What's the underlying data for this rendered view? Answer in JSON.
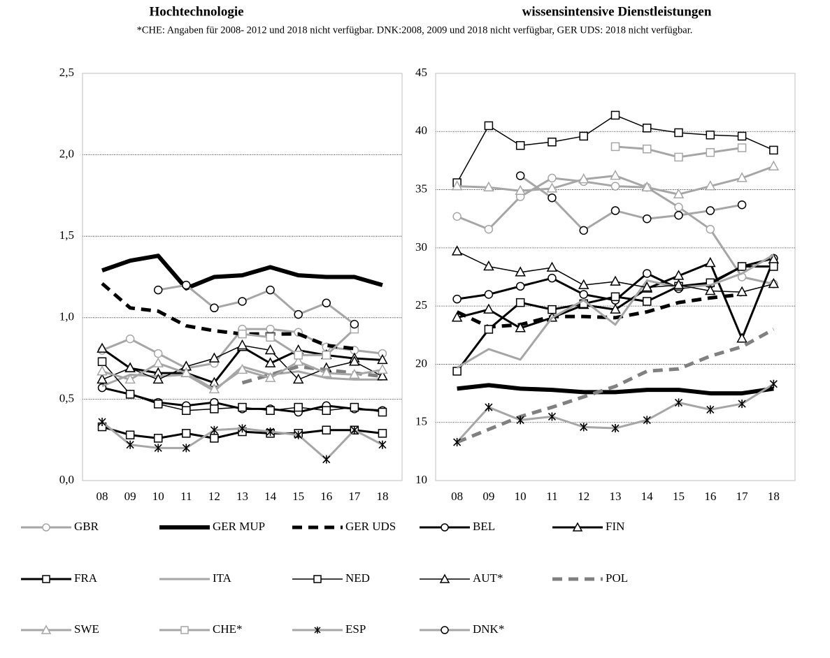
{
  "chart_data": [
    {
      "type": "line",
      "title": "Hochtechnologie",
      "subtitle": "*CHE: Angaben für 2008- 2012 und 2018 nicht verfügbar. DNK:2008, 2009 und 2018 nicht verfügbar, GER UDS: 2018 nicht verfügbar.",
      "categories": [
        "08",
        "09",
        "10",
        "11",
        "12",
        "13",
        "14",
        "15",
        "16",
        "17",
        "18"
      ],
      "ylim": [
        0,
        2.5
      ],
      "yticks": [
        {
          "value": 0,
          "label": "0,0"
        },
        {
          "value": 0.5,
          "label": "0,5"
        },
        {
          "value": 1,
          "label": "1,0"
        },
        {
          "value": 1.5,
          "label": "1,5"
        },
        {
          "value": 2,
          "label": "2,0"
        },
        {
          "value": 2.5,
          "label": "2,5"
        }
      ],
      "grid": true,
      "series": [
        {
          "name": "GBR",
          "color": "#a6a6a6",
          "marker": "circle",
          "marker_color": "#a6a6a6",
          "dash": "solid",
          "values": [
            0.8,
            0.87,
            0.78,
            0.69,
            0.72,
            0.93,
            0.93,
            0.91,
            0.82,
            0.8,
            0.78
          ]
        },
        {
          "name": "GER MUP",
          "color": "#000000",
          "marker": "none",
          "dash": "solid",
          "values": [
            1.29,
            1.35,
            1.38,
            1.18,
            1.25,
            1.26,
            1.31,
            1.26,
            1.25,
            1.25,
            1.2
          ]
        },
        {
          "name": "GER UDS",
          "color": "#000000",
          "marker": "none",
          "dash": "dashed",
          "values": [
            1.21,
            1.06,
            1.04,
            0.95,
            0.92,
            0.9,
            0.9,
            0.9,
            0.83,
            0.81,
            null
          ]
        },
        {
          "name": "BEL",
          "color": "#000000",
          "marker": "circle",
          "marker_color": "#000000",
          "dash": "solid",
          "values": [
            0.57,
            0.53,
            0.48,
            0.46,
            0.48,
            0.44,
            0.44,
            0.42,
            0.46,
            0.44,
            0.43
          ]
        },
        {
          "name": "FIN",
          "color": "#000000",
          "marker": "triangle",
          "marker_color": "#000000",
          "dash": "solid",
          "values": [
            0.81,
            0.69,
            0.66,
            0.66,
            0.6,
            0.82,
            0.72,
            0.8,
            0.77,
            0.75,
            0.74
          ]
        },
        {
          "name": "FRA",
          "color": "#000000",
          "marker": "square",
          "marker_color": "#000000",
          "dash": "solid",
          "values": [
            0.33,
            0.28,
            0.26,
            0.29,
            0.26,
            0.3,
            0.29,
            0.29,
            0.31,
            0.31,
            0.29
          ]
        },
        {
          "name": "ITA",
          "color": "#a6a6a6",
          "marker": "none",
          "dash": "solid",
          "values": [
            0.58,
            0.65,
            0.64,
            0.65,
            0.55,
            0.7,
            0.65,
            0.67,
            0.63,
            0.62,
            0.62
          ]
        },
        {
          "name": "NED",
          "color": "#000000",
          "marker": "square",
          "marker_color": "#000000",
          "dash": "thin",
          "values": [
            0.73,
            0.53,
            0.47,
            0.43,
            0.44,
            0.45,
            0.43,
            0.45,
            0.43,
            0.45,
            0.42
          ]
        },
        {
          "name": "AUT*",
          "color": "#000000",
          "marker": "triangle",
          "marker_color": "#000000",
          "dash": "thin",
          "values": [
            0.62,
            0.69,
            0.62,
            0.7,
            0.75,
            0.83,
            0.8,
            0.62,
            0.69,
            0.73,
            0.64
          ]
        },
        {
          "name": "POL",
          "color": "#808080",
          "marker": "none",
          "dash": "dashed",
          "values": [
            null,
            null,
            null,
            null,
            null,
            0.6,
            0.65,
            0.7,
            0.68,
            0.66,
            0.64
          ]
        },
        {
          "name": "SWE",
          "color": "#a6a6a6",
          "marker": "triangle",
          "marker_color": "#a6a6a6",
          "dash": "solid",
          "values": [
            0.67,
            0.62,
            0.72,
            0.66,
            0.56,
            0.68,
            0.63,
            0.73,
            0.66,
            0.65,
            0.68
          ]
        },
        {
          "name": "CHE*",
          "color": "#a6a6a6",
          "marker": "square",
          "marker_color": "#a6a6a6",
          "dash": "solid",
          "values": [
            null,
            null,
            null,
            null,
            null,
            0.9,
            0.88,
            0.77,
            0.77,
            0.93,
            null
          ]
        },
        {
          "name": "ESP",
          "color": "#a6a6a6",
          "marker": "star",
          "marker_color": "#000000",
          "dash": "solid",
          "values": [
            0.36,
            0.22,
            0.2,
            0.2,
            0.31,
            0.32,
            0.3,
            0.28,
            0.13,
            0.31,
            0.22
          ]
        },
        {
          "name": "DNK*",
          "color": "#a6a6a6",
          "marker": "circle",
          "marker_color": "#000000",
          "dash": "solid",
          "values": [
            null,
            null,
            1.17,
            1.2,
            1.06,
            1.1,
            1.17,
            1.02,
            1.09,
            0.96,
            null
          ]
        }
      ]
    },
    {
      "type": "line",
      "title": "wissensintensive Dienstleistungen",
      "categories": [
        "08",
        "09",
        "10",
        "11",
        "12",
        "13",
        "14",
        "15",
        "16",
        "17",
        "18"
      ],
      "ylim": [
        10,
        45
      ],
      "yticks": [
        10,
        15,
        20,
        25,
        30,
        35,
        40,
        45
      ],
      "grid": true,
      "series": [
        {
          "name": "GBR",
          "color": "#a6a6a6",
          "marker": "circle",
          "marker_color": "#a6a6a6",
          "dash": "solid",
          "values": [
            32.7,
            31.6,
            34.4,
            36.0,
            35.7,
            35.3,
            35.2,
            33.5,
            31.6,
            27.5,
            26.9
          ]
        },
        {
          "name": "GER MUP",
          "color": "#000000",
          "marker": "none",
          "dash": "solid",
          "values": [
            17.9,
            18.2,
            17.9,
            17.8,
            17.6,
            17.6,
            17.8,
            17.8,
            17.5,
            17.5,
            17.9
          ]
        },
        {
          "name": "GER UDS",
          "color": "#000000",
          "marker": "none",
          "dash": "dashed",
          "values": [
            24.5,
            23.2,
            23.4,
            24.1,
            24.1,
            24.0,
            24.5,
            25.3,
            25.7,
            26.0,
            null
          ]
        },
        {
          "name": "BEL",
          "color": "#000000",
          "marker": "circle",
          "marker_color": "#000000",
          "dash": "solid",
          "values": [
            25.6,
            26.0,
            26.7,
            27.4,
            26.0,
            25.5,
            27.8,
            26.5,
            26.9,
            28.4,
            29.1
          ]
        },
        {
          "name": "FIN",
          "color": "#000000",
          "marker": "triangle",
          "marker_color": "#000000",
          "dash": "solid",
          "values": [
            24.0,
            24.7,
            23.1,
            24.0,
            25.1,
            24.7,
            26.5,
            27.6,
            28.7,
            22.2,
            29.0
          ]
        },
        {
          "name": "FRA",
          "color": "#000000",
          "marker": "square",
          "marker_color": "#000000",
          "dash": "solid",
          "values": [
            19.4,
            23.0,
            25.3,
            24.7,
            25.2,
            25.8,
            25.4,
            26.7,
            27.0,
            28.4,
            28.4
          ]
        },
        {
          "name": "ITA",
          "color": "#a6a6a6",
          "marker": "none",
          "dash": "solid",
          "values": [
            19.7,
            21.3,
            20.4,
            24.0,
            25.5,
            23.4,
            27.2,
            26.6,
            26.8,
            27.8,
            29.4
          ]
        },
        {
          "name": "NED",
          "color": "#000000",
          "marker": "square",
          "marker_color": "#000000",
          "dash": "thin",
          "values": [
            35.6,
            40.5,
            38.8,
            39.1,
            39.6,
            41.4,
            40.3,
            39.9,
            39.7,
            39.6,
            38.4
          ]
        },
        {
          "name": "AUT*",
          "color": "#000000",
          "marker": "triangle",
          "marker_color": "#000000",
          "dash": "thin",
          "values": [
            29.7,
            28.4,
            27.9,
            28.3,
            26.8,
            27.1,
            26.6,
            26.8,
            26.3,
            26.2,
            26.9
          ]
        },
        {
          "name": "POL",
          "color": "#808080",
          "marker": "none",
          "dash": "dashed",
          "values": [
            13.3,
            14.4,
            15.5,
            16.3,
            17.2,
            18.1,
            19.4,
            19.6,
            20.7,
            21.5,
            23.0
          ]
        },
        {
          "name": "SWE",
          "color": "#a6a6a6",
          "marker": "triangle",
          "marker_color": "#a6a6a6",
          "dash": "solid",
          "values": [
            35.3,
            35.2,
            34.9,
            35.1,
            35.9,
            36.2,
            35.2,
            34.6,
            35.3,
            36.0,
            37.0
          ]
        },
        {
          "name": "CHE*",
          "color": "#a6a6a6",
          "marker": "square",
          "marker_color": "#a6a6a6",
          "dash": "solid",
          "values": [
            null,
            null,
            null,
            null,
            null,
            38.7,
            38.5,
            37.8,
            38.2,
            38.6,
            null
          ]
        },
        {
          "name": "ESP",
          "color": "#a6a6a6",
          "marker": "star",
          "marker_color": "#000000",
          "dash": "solid",
          "values": [
            13.3,
            16.3,
            15.2,
            15.5,
            14.6,
            14.5,
            15.2,
            16.7,
            16.1,
            16.6,
            18.3
          ]
        },
        {
          "name": "DNK*",
          "color": "#a6a6a6",
          "marker": "circle",
          "marker_color": "#000000",
          "dash": "solid",
          "values": [
            null,
            null,
            36.2,
            34.3,
            31.5,
            33.2,
            32.5,
            32.8,
            33.2,
            33.7,
            null
          ]
        }
      ]
    }
  ]
}
